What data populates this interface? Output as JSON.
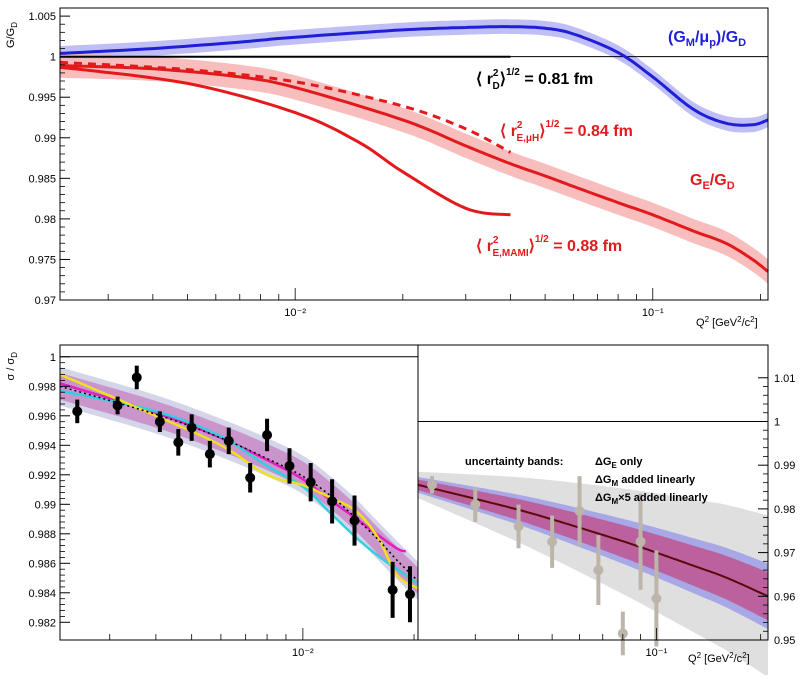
{
  "colors": {
    "blue": "#1f1fd6",
    "blueband": "#b8b8f5",
    "red": "#e31a1c",
    "redband": "#f7b7b7",
    "black": "#000000",
    "magenta": "#e020c0",
    "cyan": "#30d0e0",
    "yellow": "#f0e020",
    "darkred": "#5a0a0a",
    "grey": "#bdb4aa"
  },
  "chart_data": [
    {
      "type": "line",
      "panel": "top",
      "ylabel": "G/G_D",
      "xlabel": "Q² [GeV²/c²]",
      "xscale": "log",
      "xlim": [
        0.0022,
        0.21
      ],
      "ylim": [
        0.97,
        1.006
      ],
      "ytick_labels": [
        "0.97",
        "0.975",
        "0.98",
        "0.985",
        "0.99",
        "0.995",
        "1",
        "1.005"
      ],
      "yticks": [
        0.97,
        0.975,
        0.98,
        0.985,
        0.99,
        0.995,
        1.0,
        1.005
      ],
      "xtick_labels": [
        "10⁻²",
        "10⁻¹"
      ],
      "xticks": [
        0.01,
        0.1
      ],
      "series": [
        {
          "name": "(G_M/μ_p)/G_D",
          "color": "blue",
          "band": 0.0009,
          "x": [
            0.0022,
            0.004,
            0.007,
            0.01,
            0.02,
            0.03,
            0.04,
            0.05,
            0.06,
            0.08,
            0.1,
            0.13,
            0.16,
            0.19,
            0.21
          ],
          "y": [
            1.0004,
            1.001,
            1.0018,
            1.0024,
            1.0033,
            1.0036,
            1.0037,
            1.0035,
            1.0028,
            1.0005,
            0.9975,
            0.9935,
            0.9918,
            0.9916,
            0.9922
          ]
        },
        {
          "name": "G_E/G_D",
          "color": "red",
          "band": 0.0015,
          "x": [
            0.0022,
            0.004,
            0.007,
            0.01,
            0.02,
            0.03,
            0.04,
            0.05,
            0.06,
            0.08,
            0.1,
            0.13,
            0.16,
            0.19,
            0.21
          ],
          "y": [
            0.9989,
            0.9985,
            0.9975,
            0.9962,
            0.9922,
            0.989,
            0.9868,
            0.9853,
            0.984,
            0.982,
            0.9805,
            0.9785,
            0.977,
            0.975,
            0.9735
          ]
        },
        {
          "name": "<r_D²>^1/2 = 0.81 fm",
          "color": "black",
          "x": [
            0.0022,
            0.04
          ],
          "y": [
            1.0,
            1.0
          ]
        },
        {
          "name": "<r_E,μH²>^1/2 = 0.84 fm",
          "color": "red",
          "dashed": true,
          "x": [
            0.0022,
            0.005,
            0.01,
            0.02,
            0.03,
            0.04
          ],
          "y": [
            0.9993,
            0.9984,
            0.9969,
            0.9939,
            0.9911,
            0.9882
          ]
        },
        {
          "name": "<r_E,MAMI²>^1/2 = 0.88 fm",
          "color": "red",
          "x": [
            0.0022,
            0.005,
            0.01,
            0.015,
            0.02,
            0.03,
            0.04
          ],
          "y": [
            0.9987,
            0.9967,
            0.9931,
            0.9895,
            0.9858,
            0.9813,
            0.9805
          ]
        }
      ],
      "annotations": [
        {
          "text": "(G",
          "sub": "M",
          "mid": "/μ",
          "sub2": "p",
          "end": ")/G",
          "sub3": "D",
          "color": "blue"
        },
        {
          "text": "G",
          "sub": "E",
          "end": "/G",
          "sub3": "D",
          "color": "red"
        },
        {
          "label": "⟨ r",
          "sup": "2",
          "sub": "D",
          "tail": "⟩",
          "tailsup": "1/2",
          "value": " = 0.81 fm",
          "color": "black"
        },
        {
          "label": "⟨ r",
          "sup": "2",
          "sub": "E,μH",
          "tail": "⟩",
          "tailsup": "1/2",
          "value": " = 0.84 fm",
          "color": "red"
        },
        {
          "label": "⟨ r",
          "sup": "2",
          "sub": "E,MAMI",
          "tail": "⟩",
          "tailsup": "1/2",
          "value": " = 0.88 fm",
          "color": "red"
        }
      ]
    },
    {
      "type": "scatter",
      "panel": "bottom-left",
      "ylabel": "σ / σ_D",
      "xscale": "log",
      "xlim": [
        0.0022,
        0.0205
      ],
      "ylim": [
        0.9808,
        1.0008
      ],
      "ytick_labels": [
        "0.982",
        "0.984",
        "0.986",
        "0.988",
        "0.99",
        "0.992",
        "0.994",
        "0.996",
        "0.998",
        "1"
      ],
      "yticks": [
        0.982,
        0.984,
        0.986,
        0.988,
        0.99,
        0.992,
        0.994,
        0.996,
        0.998,
        1.0
      ],
      "xtick_labels": [
        "10⁻²"
      ],
      "xticks": [
        0.01
      ],
      "points": [
        {
          "x": 0.00245,
          "y": 0.9963,
          "err": 0.0008
        },
        {
          "x": 0.00315,
          "y": 0.9967,
          "err": 0.0006
        },
        {
          "x": 0.00355,
          "y": 0.9986,
          "err": 0.0008
        },
        {
          "x": 0.0041,
          "y": 0.9956,
          "err": 0.0007
        },
        {
          "x": 0.0046,
          "y": 0.9942,
          "err": 0.0009
        },
        {
          "x": 0.005,
          "y": 0.9952,
          "err": 0.0009
        },
        {
          "x": 0.0056,
          "y": 0.9934,
          "err": 0.0009
        },
        {
          "x": 0.0063,
          "y": 0.9943,
          "err": 0.0009
        },
        {
          "x": 0.0072,
          "y": 0.9918,
          "err": 0.001
        },
        {
          "x": 0.008,
          "y": 0.9947,
          "err": 0.0011
        },
        {
          "x": 0.0092,
          "y": 0.9926,
          "err": 0.0012
        },
        {
          "x": 0.0105,
          "y": 0.9915,
          "err": 0.0013
        },
        {
          "x": 0.012,
          "y": 0.9902,
          "err": 0.0015
        },
        {
          "x": 0.0138,
          "y": 0.9889,
          "err": 0.0017
        },
        {
          "x": 0.0175,
          "y": 0.9842,
          "err": 0.0019
        },
        {
          "x": 0.0195,
          "y": 0.9839,
          "err": 0.0019
        }
      ],
      "series": [
        {
          "name": "band",
          "color": "magenta",
          "band": 0.0009,
          "x": [
            0.0022,
            0.004,
            0.006,
            0.008,
            0.01,
            0.012,
            0.014,
            0.016,
            0.018,
            0.0205
          ],
          "y": [
            0.998,
            0.9961,
            0.9945,
            0.9932,
            0.992,
            0.9905,
            0.989,
            0.9875,
            0.9862,
            0.9848
          ]
        },
        {
          "name": "magenta",
          "color": "magenta",
          "x": [
            0.0022,
            0.004,
            0.006,
            0.008,
            0.01,
            0.012,
            0.014,
            0.016,
            0.018,
            0.019
          ],
          "y": [
            0.9982,
            0.9962,
            0.9945,
            0.993,
            0.9917,
            0.9902,
            0.989,
            0.9879,
            0.987,
            0.9868
          ]
        },
        {
          "name": "cyan",
          "color": "cyan",
          "x": [
            0.0022,
            0.004,
            0.006,
            0.008,
            0.01,
            0.012,
            0.014,
            0.016,
            0.018,
            0.0205
          ],
          "y": [
            0.9977,
            0.9963,
            0.9946,
            0.9926,
            0.9912,
            0.9893,
            0.9877,
            0.9865,
            0.9856,
            0.9846
          ]
        },
        {
          "name": "yellow",
          "color": "yellow",
          "x": [
            0.0022,
            0.004,
            0.006,
            0.008,
            0.01,
            0.012,
            0.014,
            0.016,
            0.018,
            0.0205
          ],
          "y": [
            0.9988,
            0.996,
            0.994,
            0.992,
            0.9913,
            0.9904,
            0.9895,
            0.9877,
            0.9852,
            0.9843
          ]
        },
        {
          "name": "dotted",
          "color": "black",
          "dotted": true,
          "x": [
            0.0022,
            0.004,
            0.006,
            0.008,
            0.01,
            0.012,
            0.014,
            0.016,
            0.018,
            0.0205
          ],
          "y": [
            0.998,
            0.9961,
            0.9945,
            0.9931,
            0.9919,
            0.9905,
            0.989,
            0.9876,
            0.9862,
            0.9848
          ]
        }
      ]
    },
    {
      "type": "scatter",
      "panel": "bottom-right",
      "xlabel": "Q² [GeV²/c²]",
      "xscale": "log",
      "xlim": [
        0.0205,
        0.21
      ],
      "ylim": [
        0.95,
        1.0175
      ],
      "ytick_labels": [
        "0.95",
        "0.96",
        "0.97",
        "0.98",
        "0.99",
        "1",
        "1.01"
      ],
      "yticks": [
        0.95,
        0.96,
        0.97,
        0.98,
        0.99,
        1.0,
        1.01
      ],
      "xtick_labels": [
        "10⁻¹"
      ],
      "xticks": [
        0.1
      ],
      "legend": {
        "title": "uncertainty bands:",
        "entries": [
          "ΔG_E only",
          "ΔG_M added linearly",
          "ΔG_M×5 added linearly"
        ]
      },
      "points": [
        {
          "x": 0.0225,
          "y": 0.9855,
          "err": 0.002
        },
        {
          "x": 0.03,
          "y": 0.981,
          "err": 0.004
        },
        {
          "x": 0.04,
          "y": 0.976,
          "err": 0.005
        },
        {
          "x": 0.05,
          "y": 0.9725,
          "err": 0.006
        },
        {
          "x": 0.06,
          "y": 0.9795,
          "err": 0.008
        },
        {
          "x": 0.068,
          "y": 0.966,
          "err": 0.008
        },
        {
          "x": 0.08,
          "y": 0.9515,
          "err": 0.005
        },
        {
          "x": 0.09,
          "y": 0.9725,
          "err": 0.011
        },
        {
          "x": 0.1,
          "y": 0.9595,
          "err": 0.011
        }
      ],
      "series": [
        {
          "name": "grey band",
          "color": "grey",
          "bandlo": 0.002,
          "bandhi": 0.002,
          "x": [
            0.0205,
            0.21
          ],
          "y": [
            0.985,
            0.9595
          ],
          "widthAt": [
            0.004,
            0.018
          ]
        },
        {
          "name": "central",
          "color": "darkred",
          "x": [
            0.0205,
            0.03,
            0.04,
            0.05,
            0.06,
            0.08,
            0.1,
            0.13,
            0.16,
            0.21
          ],
          "y": [
            0.9855,
            0.9823,
            0.9798,
            0.9776,
            0.9757,
            0.9726,
            0.97,
            0.9668,
            0.9642,
            0.96
          ]
        }
      ]
    }
  ]
}
